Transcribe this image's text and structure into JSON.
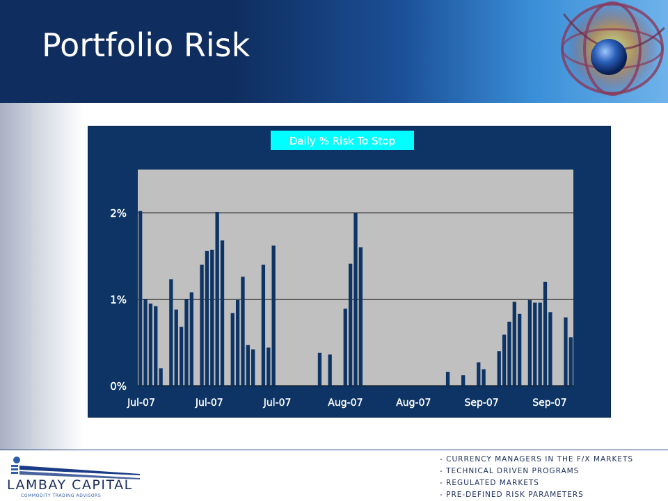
{
  "header": {
    "title": "Portfolio Risk"
  },
  "logo": {
    "name": "LAMBAY CAPITAL",
    "subtitle": "COMMODITY TRADING ADVISORS"
  },
  "taglines": [
    "- CURRENCY MANAGERS IN THE F/X MARKETS",
    "- TECHNICAL DRIVEN PROGRAMS",
    "- REGULATED MARKETS",
    "- PRE-DEFINED RISK PARAMETERS"
  ],
  "colors": {
    "header_dark": "#0f2e5f",
    "chart_frame": "#0d3464",
    "plot_area": "#c0c0c0",
    "bar": "#0d3464",
    "title_box": "#00ffff"
  },
  "chart_data": {
    "type": "bar",
    "title": "Daily % Risk To Stop",
    "x_tick_labels": [
      "Jul-07",
      "Jul-07",
      "Jul-07",
      "Aug-07",
      "Aug-07",
      "Sep-07",
      "Sep-07"
    ],
    "ylim": [
      0,
      2.5
    ],
    "y_ticks": [
      0,
      1,
      2
    ],
    "y_tick_labels": [
      "0%",
      "1%",
      "2%"
    ],
    "grid": true,
    "values": [
      2.02,
      1.0,
      0.95,
      0.92,
      0.2,
      0,
      1.23,
      0.88,
      0.68,
      1.0,
      1.08,
      0,
      1.4,
      1.56,
      1.57,
      2.01,
      1.68,
      0,
      0.84,
      0.99,
      1.26,
      0.47,
      0.42,
      0,
      1.4,
      0.44,
      1.62,
      0,
      0,
      0,
      0,
      0,
      0,
      0,
      0,
      0.38,
      0,
      0.36,
      0,
      0,
      0.89,
      1.41,
      2.0,
      1.6,
      0,
      0,
      0,
      0,
      0,
      0,
      0,
      0,
      0,
      0,
      0,
      0,
      0,
      0,
      0,
      0,
      0.16,
      0,
      0,
      0.12,
      0,
      0,
      0.27,
      0.19,
      0,
      0,
      0.4,
      0.59,
      0.74,
      0.97,
      0.83,
      0,
      0.99,
      0.96,
      0.96,
      1.2,
      0.85,
      0,
      0,
      0.79,
      0.56
    ]
  }
}
